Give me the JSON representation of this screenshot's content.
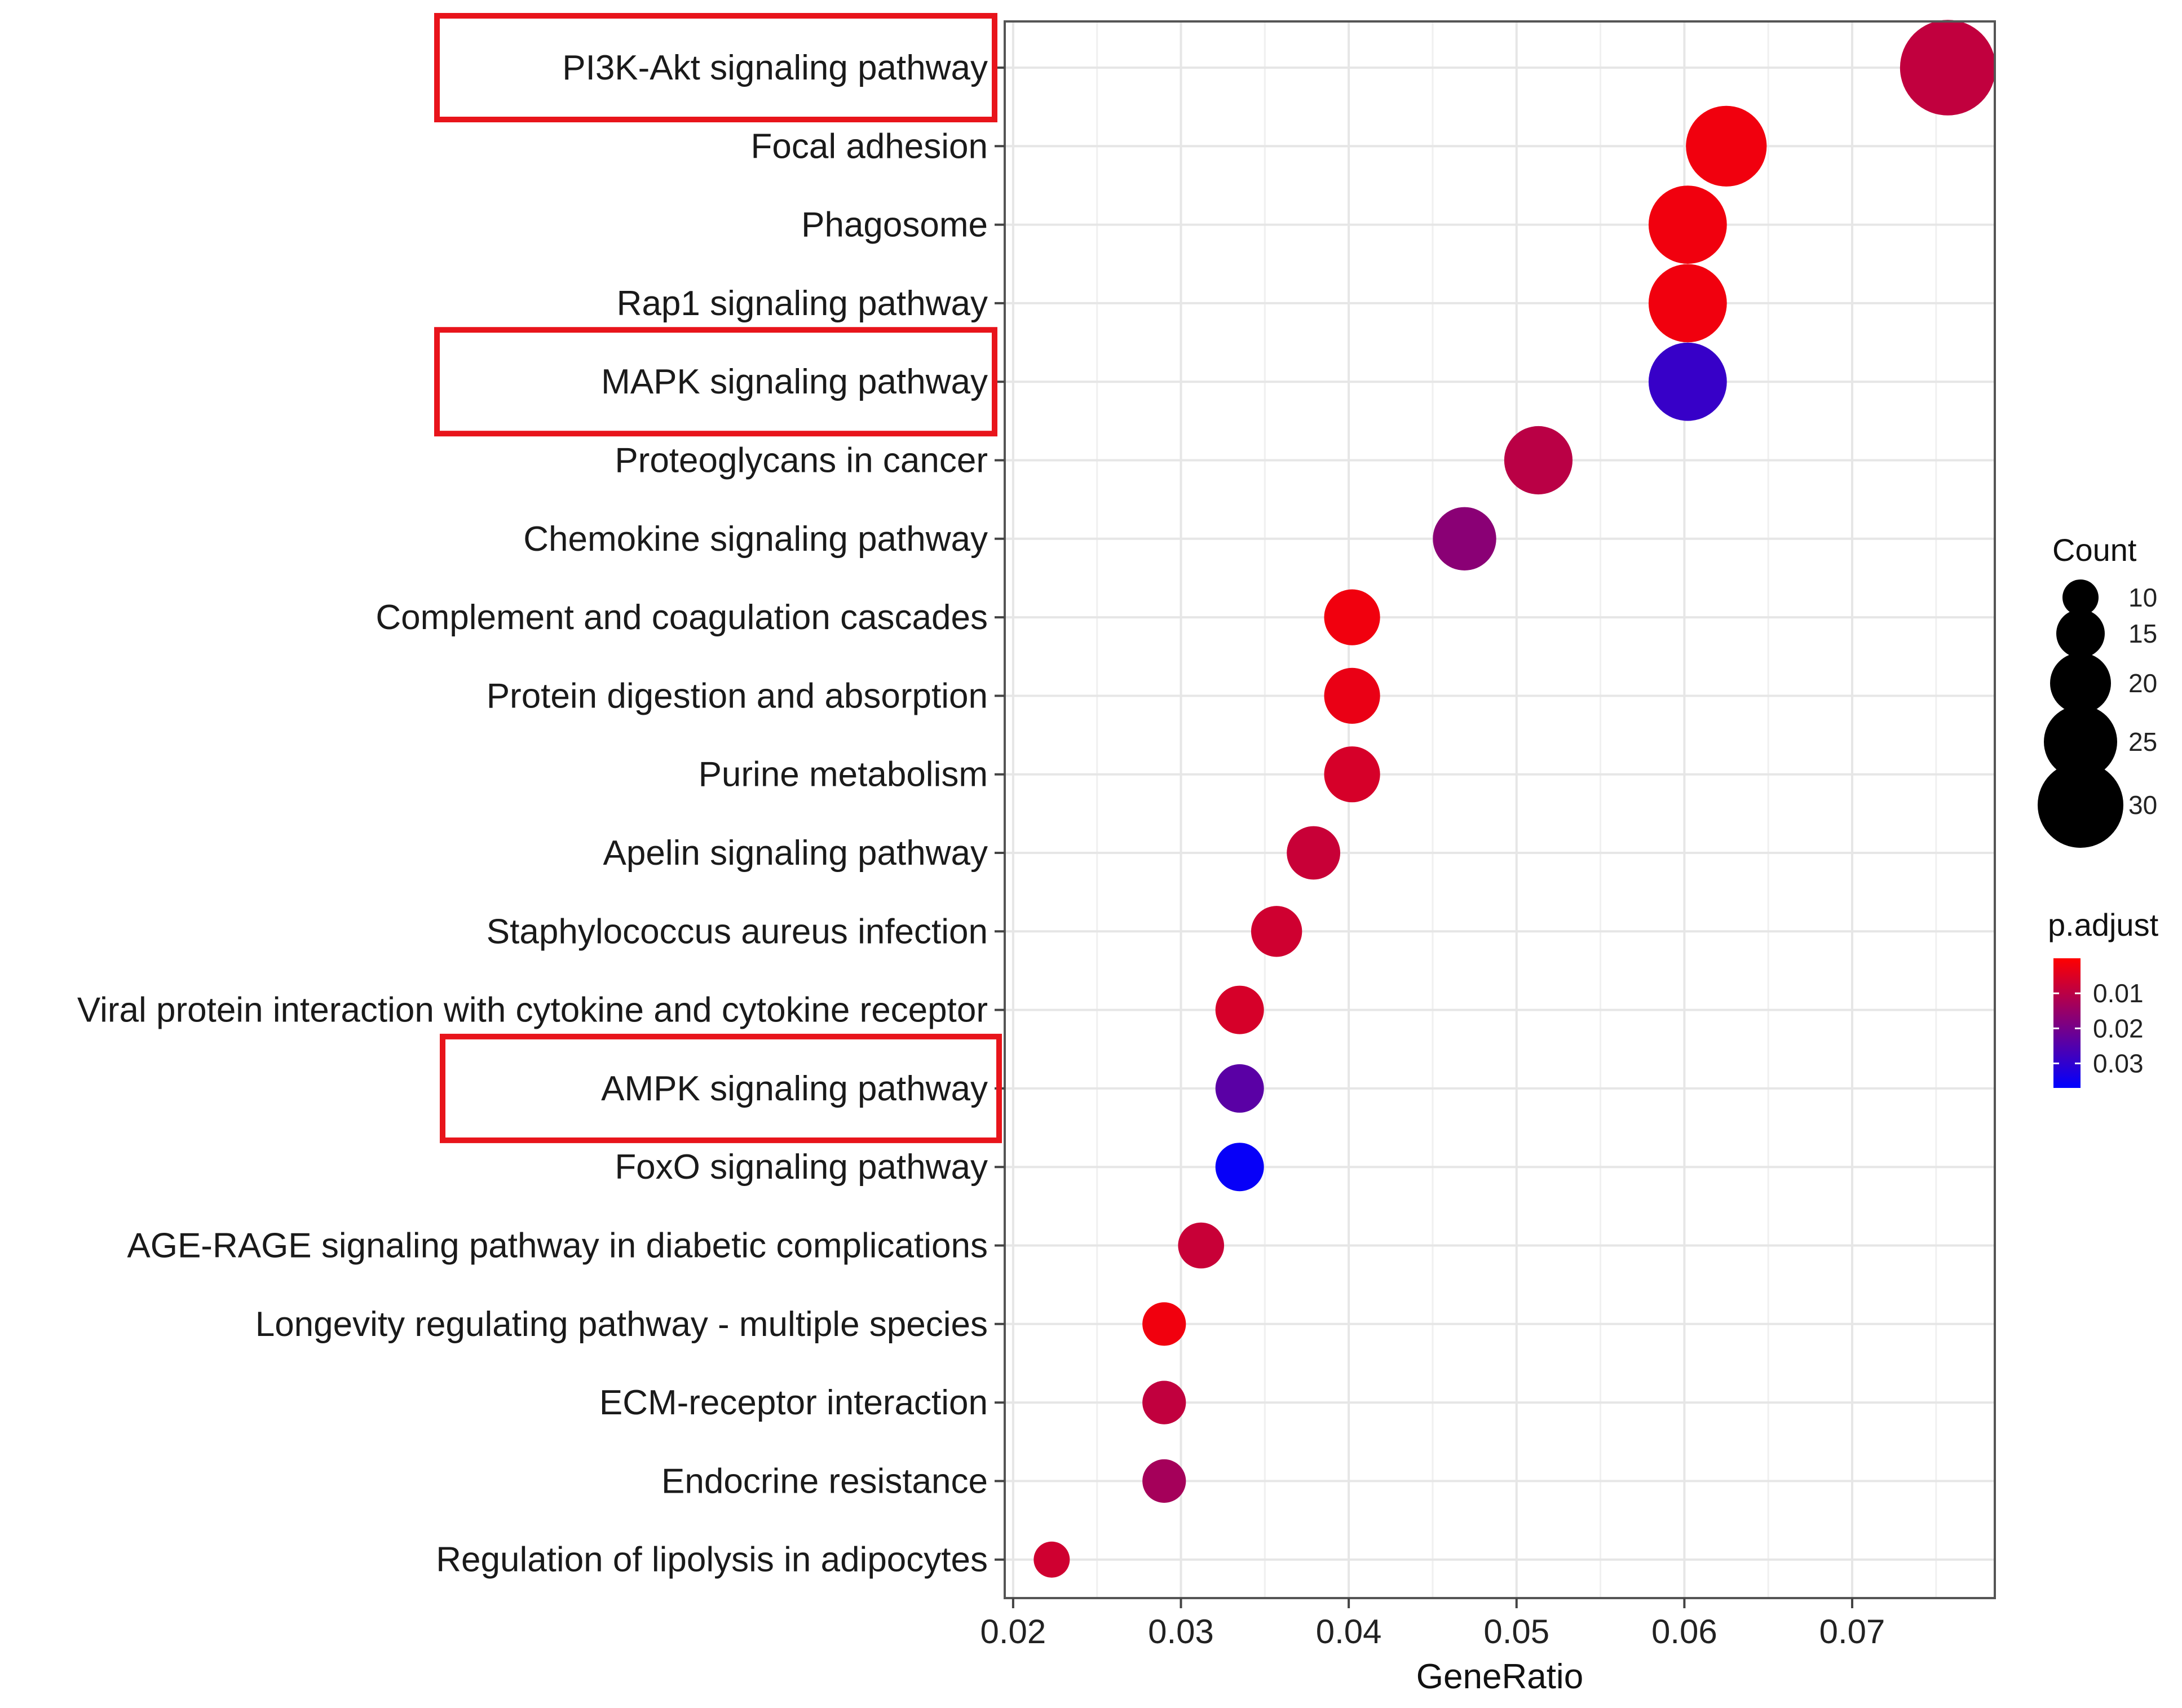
{
  "chart_data": {
    "type": "scatter",
    "subtype": "dot-plot",
    "xlabel": "GeneRatio",
    "ylabel": "",
    "xlim": [
      0.0195,
      0.0785
    ],
    "xticks": [
      0.02,
      0.03,
      0.04,
      0.05,
      0.06,
      0.07
    ],
    "xtick_labels": [
      "0.02",
      "0.03",
      "0.04",
      "0.05",
      "0.06",
      "0.07"
    ],
    "grid": true,
    "categories": [
      "PI3K-Akt signaling pathway",
      "Focal adhesion",
      "Phagosome",
      "Rap1 signaling pathway",
      "MAPK signaling pathway",
      "Proteoglycans in cancer",
      "Chemokine signaling pathway",
      "Complement and coagulation cascades",
      "Protein digestion and absorption",
      "Purine metabolism",
      "Apelin signaling pathway",
      "Staphylococcus aureus infection",
      "Viral protein interaction with cytokine and cytokine receptor",
      "AMPK signaling pathway",
      "FoxO signaling pathway",
      "AGE-RAGE signaling pathway in diabetic complications",
      "Longevity regulating pathway - multiple species",
      "ECM-receptor interaction",
      "Endocrine resistance",
      "Regulation of lipolysis in adipocytes"
    ],
    "gene_ratio": [
      0.0757,
      0.0625,
      0.0602,
      0.0602,
      0.0602,
      0.0513,
      0.0469,
      0.0402,
      0.0402,
      0.0402,
      0.0379,
      0.0357,
      0.0335,
      0.0335,
      0.0335,
      0.0312,
      0.029,
      0.029,
      0.029,
      0.0223
    ],
    "count": [
      34,
      28,
      27,
      27,
      27,
      23,
      21,
      18,
      18,
      18,
      17,
      16,
      15,
      15,
      15,
      14,
      13,
      13,
      13,
      10
    ],
    "p_adjust": [
      0.009,
      0.002,
      0.002,
      0.002,
      0.029,
      0.01,
      0.017,
      0.002,
      0.003,
      0.006,
      0.008,
      0.007,
      0.006,
      0.024,
      0.036,
      0.008,
      0.002,
      0.009,
      0.013,
      0.007
    ],
    "highlighted": [
      "PI3K-Akt signaling pathway",
      "MAPK signaling pathway",
      "AMPK signaling pathway"
    ],
    "legend_size": {
      "title": "Count",
      "values": [
        10,
        15,
        20,
        25,
        30
      ],
      "labels": [
        "10",
        "15",
        "20",
        "25",
        "30"
      ]
    },
    "legend_color": {
      "title": "p.adjust",
      "range": [
        0.0,
        0.037
      ],
      "ticks": [
        0.01,
        0.02,
        0.03
      ],
      "tick_labels": [
        "0.01",
        "0.02",
        "0.03"
      ],
      "low_color": "#ff0000",
      "high_color": "#0000ff"
    },
    "panel_background": "#ffffff",
    "grid_color": "#e6e6e6",
    "highlight_color": "#e8141b",
    "legend_position": "right"
  }
}
